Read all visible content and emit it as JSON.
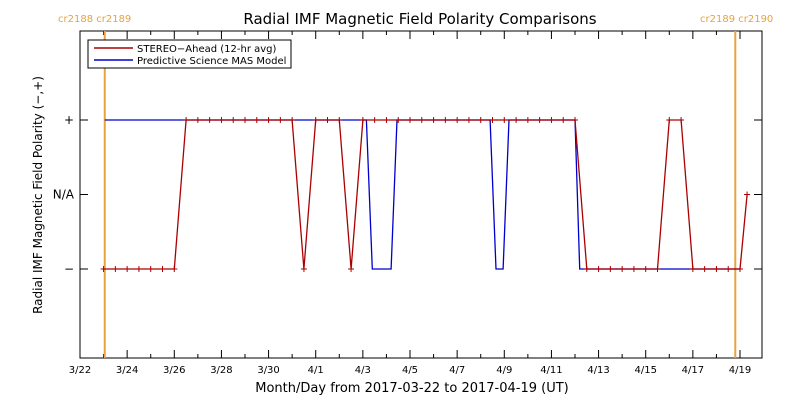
{
  "chart_data": {
    "type": "line",
    "title": "Radial IMF Magnetic Field Polarity Comparisons",
    "xlabel": "Month/Day from 2017-03-22 to 2017-04-19 (UT)",
    "ylabel": "Radial IMF Magnetic Field Polarity (−,+)",
    "x_range_days": [
      0,
      28.3
    ],
    "x_start_date": "2017-03-22",
    "x_ticks": [
      {
        "day": 0,
        "label": "3/22"
      },
      {
        "day": 2,
        "label": "3/24"
      },
      {
        "day": 4,
        "label": "3/26"
      },
      {
        "day": 6,
        "label": "3/28"
      },
      {
        "day": 8,
        "label": "3/30"
      },
      {
        "day": 10,
        "label": "4/1"
      },
      {
        "day": 12,
        "label": "4/3"
      },
      {
        "day": 14,
        "label": "4/5"
      },
      {
        "day": 16,
        "label": "4/7"
      },
      {
        "day": 18,
        "label": "4/9"
      },
      {
        "day": 20,
        "label": "4/11"
      },
      {
        "day": 22,
        "label": "4/13"
      },
      {
        "day": 24,
        "label": "4/15"
      },
      {
        "day": 26,
        "label": "4/17"
      },
      {
        "day": 28,
        "label": "4/19"
      }
    ],
    "ylim": [
      -2,
      2
    ],
    "y_ticks": [
      {
        "value": 1,
        "label": "+"
      },
      {
        "value": 0,
        "label": "N/A"
      },
      {
        "value": -1,
        "label": "−"
      }
    ],
    "carrington_markers": [
      {
        "day": 1.05,
        "left_label": "cr2188",
        "right_label": "cr2189"
      },
      {
        "day": 27.8,
        "left_label": "cr2189",
        "right_label": "cr2190"
      }
    ],
    "marker_color": "#e8a33c",
    "legend": {
      "position": "top-left"
    },
    "series": [
      {
        "name": "STEREO−Ahead (12-hr avg)",
        "color": "#aa0000",
        "markers": true,
        "points": [
          [
            1.0,
            -1
          ],
          [
            1.5,
            -1
          ],
          [
            2.0,
            -1
          ],
          [
            2.5,
            -1
          ],
          [
            3.0,
            -1
          ],
          [
            3.5,
            -1
          ],
          [
            4.0,
            -1
          ],
          [
            4.5,
            1
          ],
          [
            5.0,
            1
          ],
          [
            5.5,
            1
          ],
          [
            6.0,
            1
          ],
          [
            6.5,
            1
          ],
          [
            7.0,
            1
          ],
          [
            7.5,
            1
          ],
          [
            8.0,
            1
          ],
          [
            8.5,
            1
          ],
          [
            9.0,
            1
          ],
          [
            9.5,
            -1
          ],
          [
            10.0,
            1
          ],
          [
            10.5,
            1
          ],
          [
            11.0,
            1
          ],
          [
            11.5,
            -1
          ],
          [
            12.0,
            1
          ],
          [
            12.5,
            1
          ],
          [
            13.0,
            1
          ],
          [
            13.5,
            1
          ],
          [
            14.0,
            1
          ],
          [
            14.5,
            1
          ],
          [
            15.0,
            1
          ],
          [
            15.5,
            1
          ],
          [
            16.0,
            1
          ],
          [
            16.5,
            1
          ],
          [
            17.0,
            1
          ],
          [
            17.5,
            1
          ],
          [
            18.0,
            1
          ],
          [
            18.5,
            1
          ],
          [
            19.0,
            1
          ],
          [
            19.5,
            1
          ],
          [
            20.0,
            1
          ],
          [
            20.5,
            1
          ],
          [
            21.0,
            1
          ],
          [
            21.5,
            -1
          ],
          [
            22.0,
            -1
          ],
          [
            22.5,
            -1
          ],
          [
            23.0,
            -1
          ],
          [
            23.5,
            -1
          ],
          [
            24.0,
            -1
          ],
          [
            24.5,
            -1
          ],
          [
            25.0,
            1
          ],
          [
            25.5,
            1
          ],
          [
            26.0,
            -1
          ],
          [
            26.5,
            -1
          ],
          [
            27.0,
            -1
          ],
          [
            27.5,
            -1
          ],
          [
            28.0,
            -1
          ],
          [
            28.3,
            0
          ]
        ]
      },
      {
        "name": "Predictive Science MAS Model",
        "color": "#0000cc",
        "markers": false,
        "points": [
          [
            1.05,
            1
          ],
          [
            12.15,
            1
          ],
          [
            12.4,
            -1
          ],
          [
            13.2,
            -1
          ],
          [
            13.45,
            1
          ],
          [
            17.4,
            1
          ],
          [
            17.65,
            -1
          ],
          [
            17.95,
            -1
          ],
          [
            18.2,
            1
          ],
          [
            21.0,
            1
          ],
          [
            21.2,
            -1
          ],
          [
            28.0,
            -1
          ]
        ]
      }
    ]
  }
}
